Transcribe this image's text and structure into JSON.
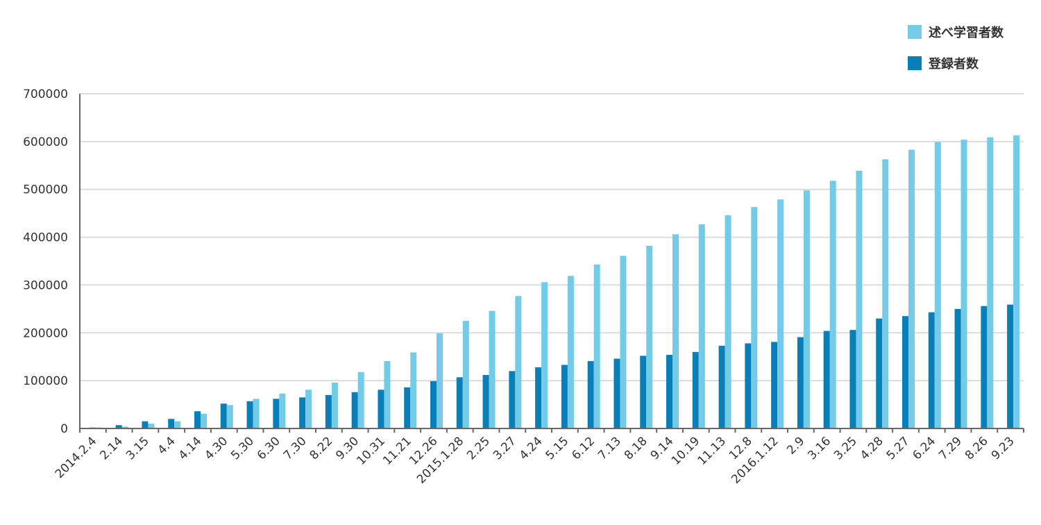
{
  "chart_data": {
    "type": "bar",
    "categories": [
      "2014.2.4",
      "2.14",
      "3.15",
      "4.4",
      "4.14",
      "4.30",
      "5.30",
      "6.30",
      "7.30",
      "8.22",
      "9.30",
      "10.31",
      "11.21",
      "12.26",
      "2015.1.28",
      "2.25",
      "3.27",
      "4.24",
      "5.15",
      "6.12",
      "7.13",
      "8.18",
      "9.14",
      "10.19",
      "11.13",
      "12.8",
      "2016.1.12",
      "2.9",
      "3.16",
      "3.25",
      "4.28",
      "5.27",
      "6.24",
      "7.29",
      "8.26",
      "9.23"
    ],
    "series": [
      {
        "name": "登録者数",
        "color": "#0a7fb7",
        "values": [
          2000,
          7000,
          15000,
          20000,
          36000,
          52000,
          57000,
          62000,
          65000,
          70000,
          76000,
          81000,
          86000,
          99000,
          107000,
          112000,
          120000,
          128000,
          133000,
          141000,
          146000,
          152000,
          154000,
          160000,
          173000,
          178000,
          181000,
          191000,
          204000,
          206000,
          230000,
          235000,
          243000,
          250000,
          256000,
          259000
        ]
      },
      {
        "name": "述べ学習者数",
        "color": "#74cbe8",
        "values": [
          2000,
          4000,
          10000,
          15000,
          31000,
          49000,
          62000,
          73000,
          81000,
          96000,
          118000,
          141000,
          159000,
          199000,
          225000,
          246000,
          277000,
          306000,
          319000,
          343000,
          361000,
          382000,
          406000,
          427000,
          446000,
          463000,
          479000,
          498000,
          518000,
          539000,
          563000,
          583000,
          599000,
          604000,
          609000,
          613000
        ]
      }
    ],
    "legend": [
      "述べ学習者数",
      "登録者数"
    ],
    "legend_placement": "top-right",
    "y_ticks": [
      "0",
      "100000",
      "200000",
      "300000",
      "400000",
      "500000",
      "600000",
      "700000"
    ],
    "ylim": [
      0,
      700000
    ],
    "grid": true,
    "title": "",
    "xlabel": "",
    "ylabel": ""
  }
}
